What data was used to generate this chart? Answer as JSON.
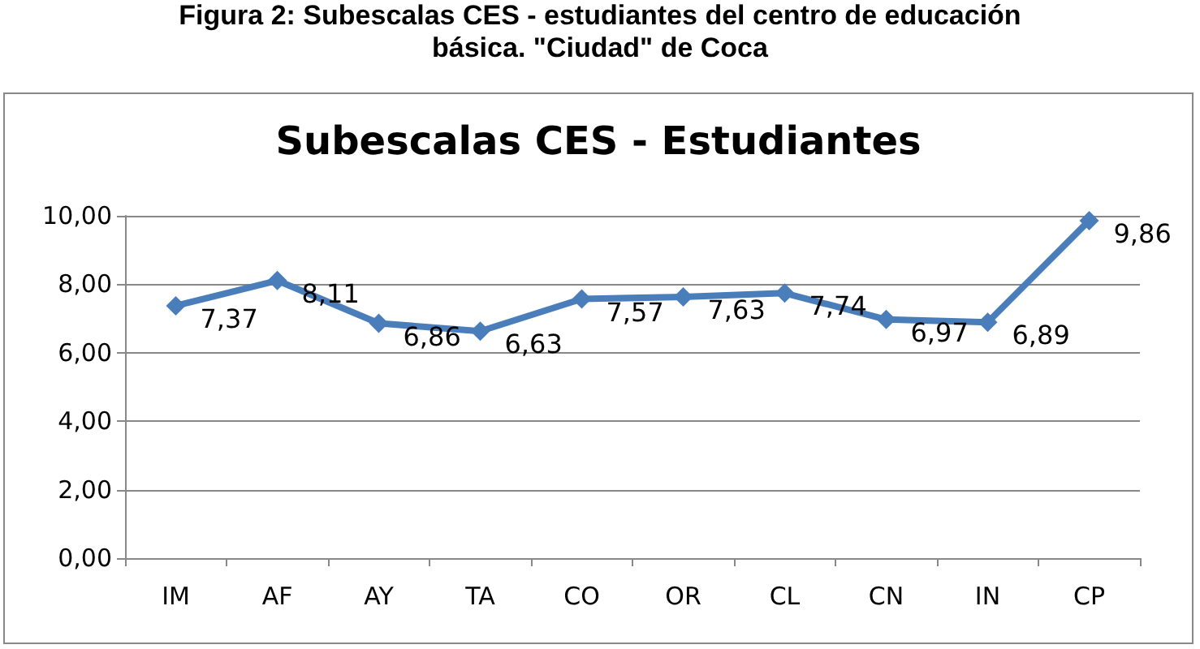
{
  "chart_data": {
    "type": "line",
    "title": "Subescalas CES - Estudiantes",
    "annotations": [
      "Figura 2: Subescalas CES - estudiantes  del centro de educación básica. \"Ciudad\" de Coca"
    ],
    "categories": [
      "IM",
      "AF",
      "AY",
      "TA",
      "CO",
      "OR",
      "CL",
      "CN",
      "IN",
      "CP"
    ],
    "series": [
      {
        "color": "#4a7ebb",
        "values": [
          7.37,
          8.11,
          6.86,
          6.63,
          7.57,
          7.63,
          7.74,
          6.97,
          6.89,
          9.86
        ],
        "value_labels": [
          "7,37",
          "8,11",
          "6,86",
          "6,63",
          "7,57",
          "7,63",
          "7,74",
          "6,97",
          "6,89",
          "9,86"
        ]
      }
    ],
    "ylim": [
      0,
      10
    ],
    "yticks": [
      {
        "value": 0,
        "label": "0,00"
      },
      {
        "value": 2,
        "label": "2,00"
      },
      {
        "value": 4,
        "label": "4,00"
      },
      {
        "value": 6,
        "label": "6,00"
      },
      {
        "value": 8,
        "label": "8,00"
      },
      {
        "value": 10,
        "label": "10,00"
      }
    ],
    "grid": "y",
    "marker": "diamond",
    "line_style": "solid"
  }
}
